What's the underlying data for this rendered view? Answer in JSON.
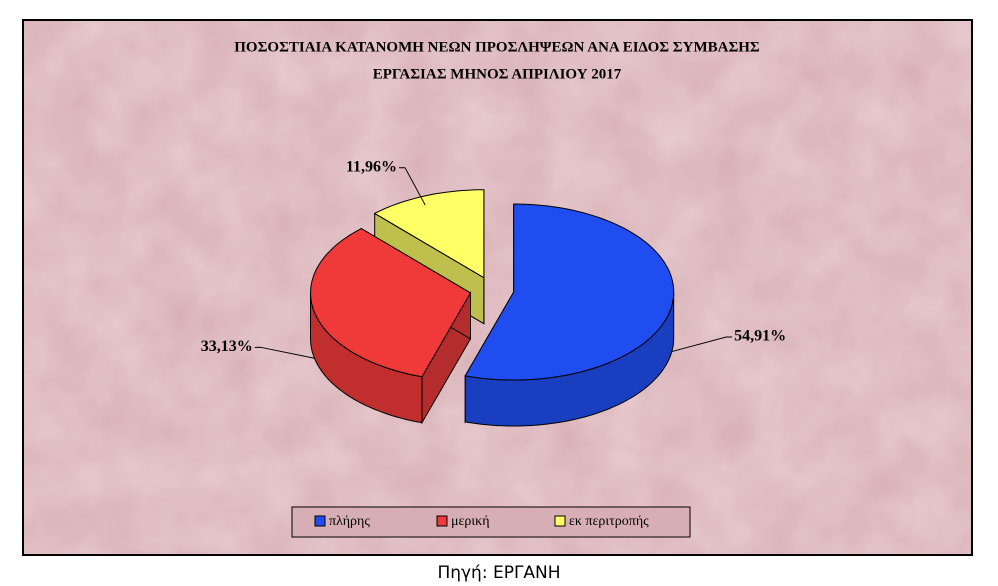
{
  "chart_data": {
    "type": "pie3d",
    "title": [
      "ΠΟΣΟΣΤΙΑΙΑ  ΚΑΤΑΝΟΜΗ  ΝΕΩΝ  ΠΡΟΣΛΗΨΕΩΝ ΑΝΑ ΕΙΔΟΣ ΣΥΜΒΑΣΗΣ",
      "ΕΡΓΑΣΙΑΣ ΜΗΝΟΣ  ΑΠΡΙΛΙΟΥ 2017"
    ],
    "categories": [
      "πλήρης",
      "μερική",
      "εκ περιτροπής"
    ],
    "values": [
      54.91,
      33.13,
      11.96
    ],
    "value_labels": [
      "54,91%",
      "33,13%",
      "11,96%"
    ],
    "colors": [
      "#1f4df0",
      "#f03a3a",
      "#ffff66"
    ],
    "legend": "bottom",
    "source": "Πηγή: ΕΡΓΑΝΗ"
  }
}
